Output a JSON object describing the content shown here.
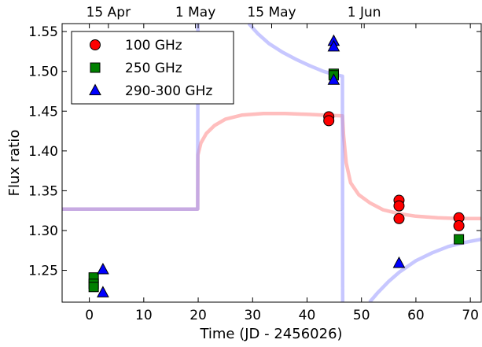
{
  "chart_data": {
    "type": "scatter",
    "xlabel": "Time (JD - 2456026)",
    "ylabel": "Flux ratio",
    "xlim": [
      -5,
      72
    ],
    "ylim": [
      1.21,
      1.56
    ],
    "x_ticks": [
      0,
      10,
      20,
      30,
      40,
      50,
      60,
      70
    ],
    "y_ticks": [
      1.25,
      1.3,
      1.35,
      1.4,
      1.45,
      1.5,
      1.55
    ],
    "top_axis": {
      "labels": [
        "15 Apr",
        "1 May",
        "15 May",
        "1 Jun"
      ],
      "x": [
        3.5,
        19.5,
        33.5,
        50.5
      ]
    },
    "legend_position": "top-left",
    "grid": false,
    "series": [
      {
        "name": "100 GHz",
        "marker": "circle",
        "color": "#ff0000",
        "points": [
          [
            44.0,
            1.443
          ],
          [
            44.0,
            1.438
          ],
          [
            56.9,
            1.338
          ],
          [
            56.9,
            1.331
          ],
          [
            56.9,
            1.315
          ],
          [
            67.9,
            1.316
          ],
          [
            67.9,
            1.306
          ]
        ]
      },
      {
        "name": "250 GHz",
        "marker": "square",
        "color": "#008000",
        "points": [
          [
            0.8,
            1.241
          ],
          [
            0.8,
            1.233
          ],
          [
            0.8,
            1.229
          ],
          [
            44.9,
            1.497
          ],
          [
            44.9,
            1.495
          ],
          [
            67.9,
            1.289
          ]
        ]
      },
      {
        "name": "290-300 GHz",
        "marker": "triangle",
        "color": "#0000ff",
        "points": [
          [
            2.5,
            1.251
          ],
          [
            2.5,
            1.222
          ],
          [
            44.9,
            1.538
          ],
          [
            44.9,
            1.531
          ],
          [
            44.9,
            1.489
          ],
          [
            56.9,
            1.259
          ]
        ]
      }
    ],
    "model_curves": [
      {
        "color": "#ff8888",
        "points": [
          [
            -5,
            1.327
          ],
          [
            19.9,
            1.327
          ],
          [
            19.95,
            1.395
          ],
          [
            20.5,
            1.41
          ],
          [
            21.5,
            1.422
          ],
          [
            23,
            1.432
          ],
          [
            25,
            1.44
          ],
          [
            28,
            1.445
          ],
          [
            32,
            1.447
          ],
          [
            36,
            1.447
          ],
          [
            40,
            1.446
          ],
          [
            43,
            1.445
          ],
          [
            46.5,
            1.444
          ],
          [
            46.7,
            1.42
          ],
          [
            47.2,
            1.385
          ],
          [
            48,
            1.36
          ],
          [
            49.5,
            1.345
          ],
          [
            51.5,
            1.335
          ],
          [
            54,
            1.326
          ],
          [
            57,
            1.321
          ],
          [
            60,
            1.318
          ],
          [
            64,
            1.316
          ],
          [
            68,
            1.315
          ],
          [
            72,
            1.315
          ]
        ]
      },
      {
        "color": "#9999ff",
        "points": [
          [
            -5,
            1.327
          ],
          [
            19.9,
            1.327
          ],
          [
            19.95,
            1.56
          ]
        ]
      },
      {
        "color": "#9999ff",
        "points": [
          [
            29.3,
            1.56
          ],
          [
            31,
            1.547
          ],
          [
            33,
            1.535
          ],
          [
            35.5,
            1.524
          ],
          [
            38,
            1.515
          ],
          [
            40.5,
            1.507
          ],
          [
            43,
            1.5
          ],
          [
            45,
            1.496
          ],
          [
            46.5,
            1.494
          ],
          [
            46.55,
            1.21
          ]
        ]
      },
      {
        "color": "#9999ff",
        "points": [
          [
            51.5,
            1.21
          ],
          [
            53,
            1.222
          ],
          [
            55,
            1.236
          ],
          [
            57,
            1.248
          ],
          [
            60,
            1.262
          ],
          [
            63,
            1.272
          ],
          [
            66,
            1.28
          ],
          [
            69,
            1.285
          ],
          [
            72,
            1.289
          ]
        ]
      }
    ]
  }
}
